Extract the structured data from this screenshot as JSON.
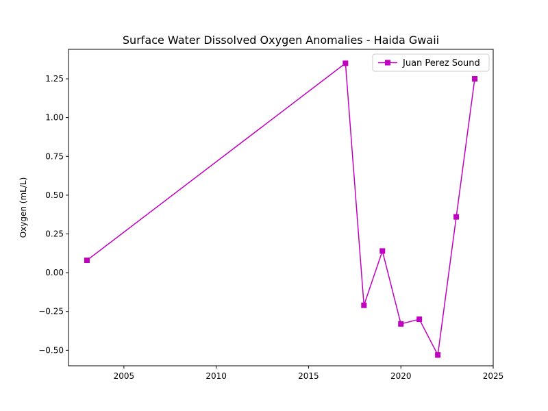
{
  "chart_data": {
    "type": "line",
    "title": "Surface Water Dissolved Oxygen Anomalies - Haida Gwaii",
    "xlabel": "",
    "ylabel": "Oxygen (mL/L)",
    "xlim": [
      2002,
      2025
    ],
    "ylim": [
      -0.6,
      1.44
    ],
    "xticks": [
      2005,
      2010,
      2015,
      2020,
      2025
    ],
    "yticks": [
      -0.5,
      -0.25,
      0.0,
      0.25,
      0.5,
      0.75,
      1.0,
      1.25
    ],
    "ytick_labels": [
      "−0.50",
      "−0.25",
      "0.00",
      "0.25",
      "0.50",
      "0.75",
      "1.00",
      "1.25"
    ],
    "grid": false,
    "legend_position": "top-right",
    "series": [
      {
        "name": "Juan Perez Sound",
        "color": "#bf00bf",
        "marker": "square",
        "x": [
          2003,
          2017,
          2018,
          2019,
          2020,
          2021,
          2022,
          2023,
          2024
        ],
        "y": [
          0.08,
          1.35,
          -0.21,
          0.14,
          -0.33,
          -0.3,
          -0.53,
          0.36,
          1.25
        ]
      }
    ]
  }
}
